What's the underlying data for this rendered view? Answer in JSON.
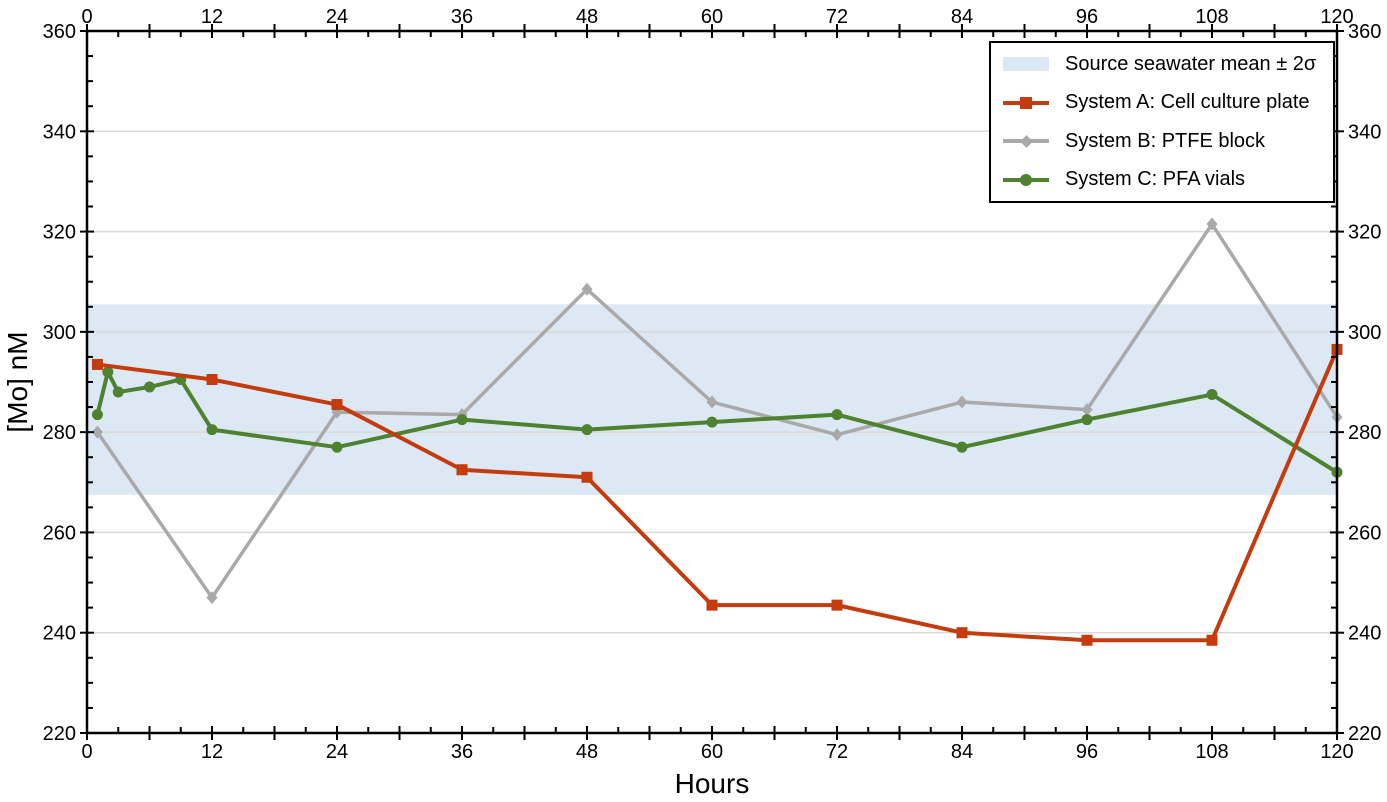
{
  "chart_data": {
    "type": "line",
    "title": "",
    "xlabel": "Hours",
    "ylabel": "[Mo] nM",
    "xlim": [
      0,
      120
    ],
    "ylim": [
      220,
      360
    ],
    "x_tick_labels": [
      0,
      12,
      24,
      36,
      48,
      60,
      72,
      84,
      96,
      108,
      120
    ],
    "x_major_tick_step": 6,
    "x_minor_tick_step": 3,
    "x_label_step": 12,
    "y_tick_labels": [
      220,
      240,
      260,
      280,
      300,
      320,
      340,
      360
    ],
    "y_major_tick_step": 20,
    "y_minor_tick_step": 5,
    "grid": "horizontal gridlines at y majors only",
    "axes_style": "boxed plot, tick labels mirrored on top and right axes",
    "band": {
      "label": "Source seawater mean ± 2σ",
      "y_low": 267.5,
      "y_high": 305.5,
      "color": "#dce8f3"
    },
    "series": [
      {
        "name": "System A: Cell culture plate",
        "color": "#c43b0d",
        "marker": "square",
        "line_width": 4,
        "zorder": 3,
        "x": [
          1,
          12,
          24,
          36,
          48,
          60,
          72,
          84,
          96,
          108,
          120
        ],
        "y": [
          293.5,
          290.5,
          285.5,
          272.5,
          271,
          245.5,
          245.5,
          240,
          238.5,
          238.5,
          296.5
        ]
      },
      {
        "name": "System B: PTFE block",
        "color": "#a9a9a9",
        "marker": "diamond",
        "line_width": 3.5,
        "zorder": 1,
        "x": [
          1,
          12,
          24,
          36,
          48,
          60,
          72,
          84,
          96,
          108,
          120
        ],
        "y": [
          280,
          247,
          284,
          283.5,
          308.5,
          286,
          279.5,
          286,
          284.5,
          321.5,
          283
        ]
      },
      {
        "name": "System C: PFA vials",
        "color": "#4e8130",
        "marker": "circle",
        "line_width": 4,
        "zorder": 2,
        "x": [
          1,
          2,
          3,
          6,
          9,
          12,
          24,
          36,
          48,
          60,
          72,
          84,
          96,
          108,
          120
        ],
        "y": [
          283.5,
          292,
          288,
          289,
          290.5,
          280.5,
          277,
          282.5,
          280.5,
          282,
          283.5,
          277,
          282.5,
          287.5,
          272
        ]
      }
    ],
    "legend": {
      "position": "top-right",
      "entries": [
        "Source seawater mean ± 2σ",
        "System A: Cell culture plate",
        "System B: PTFE block",
        "System C: PFA vials"
      ]
    }
  },
  "colors": {
    "grid": "#d9d9d9",
    "axis": "#000000",
    "background": "#ffffff"
  }
}
